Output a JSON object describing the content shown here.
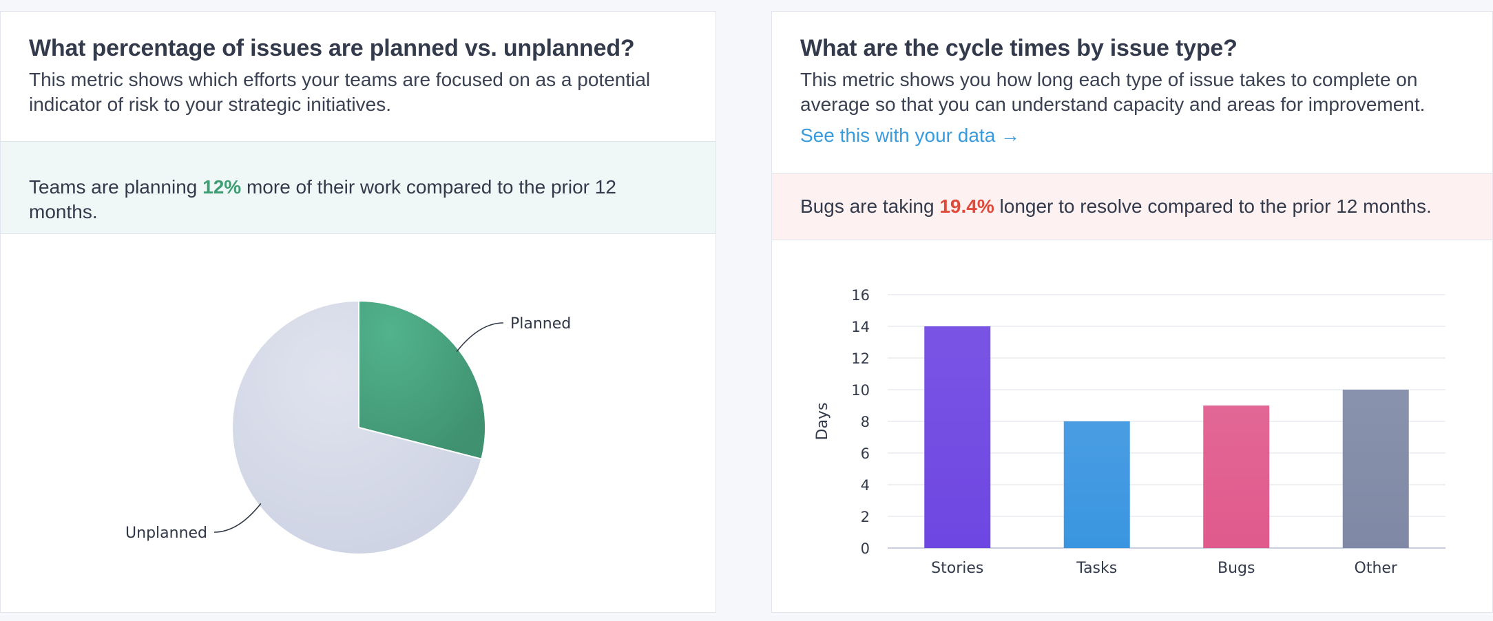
{
  "left_card": {
    "title": "What percentage of issues are planned vs. unplanned?",
    "description": "This metric shows which efforts your teams are focused on as a potential indicator of risk to your strategic initiatives.",
    "insight_prefix": "Teams are planning ",
    "insight_value": "12%",
    "insight_suffix": " more of their work compared to the prior 12 months."
  },
  "right_card": {
    "title": "What are the cycle times by issue type?",
    "description": "This metric shows you how long each type of issue takes to complete on average so that you can understand capacity and areas for improvement.",
    "link_text": "See this with your data →",
    "insight_prefix": "Bugs are taking ",
    "insight_value": "19.4%",
    "insight_suffix": " longer to resolve compared to the prior 12 months."
  },
  "colors": {
    "positive": "#3e9d72",
    "negative": "#de4b3b",
    "link": "#3a9bdc"
  },
  "chart_data": [
    {
      "type": "pie",
      "slices": [
        {
          "label": "Planned",
          "value": 29,
          "color": "#4aa27e"
        },
        {
          "label": "Unplanned",
          "value": 71,
          "color": "#d6dbe8"
        }
      ]
    },
    {
      "type": "bar",
      "categories": [
        "Stories",
        "Tasks",
        "Bugs",
        "Other"
      ],
      "values": [
        14,
        8,
        9,
        10
      ],
      "colors": [
        "#6e46e2",
        "#3a95e0",
        "#e05a8c",
        "#7f89a5"
      ],
      "ylabel": "Days",
      "ylim": [
        0,
        16
      ],
      "yticks": [
        0,
        2,
        4,
        6,
        8,
        10,
        12,
        14,
        16
      ],
      "grid": true
    }
  ]
}
